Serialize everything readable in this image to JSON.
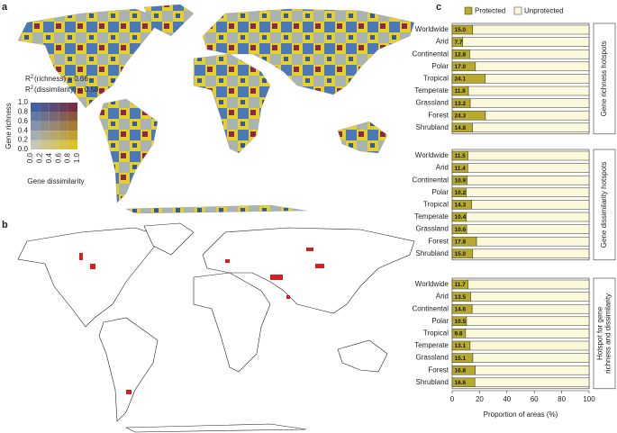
{
  "panel_labels": [
    "a",
    "b",
    "c"
  ],
  "map_a": {
    "stat_symbol": "R",
    "stat_sup": "2",
    "stats": [
      "(richness) = 0.66",
      "(dissimilarity) = 0.58"
    ],
    "colorbar": {
      "ylabel": "Gene richness",
      "xlabel": "Gene dissimilarity",
      "ticks": [
        {
          "value": 0,
          "label": "0.0"
        },
        {
          "value": 0.2,
          "label": "0.2"
        },
        {
          "value": 0.4,
          "label": "0.4"
        },
        {
          "value": 0.6,
          "label": "0.6"
        },
        {
          "value": 0.8,
          "label": "0.8"
        },
        {
          "value": 1,
          "label": "1.0"
        }
      ]
    }
  },
  "chart_data": {
    "type": "stacked-barh",
    "series": [
      {
        "name": "Protected",
        "color": "#b8aa2a"
      },
      {
        "name": "Unprotected",
        "color": "#fbf8dc"
      }
    ],
    "categories": [
      "Worldwide",
      "Arid",
      "Continental",
      "Polar",
      "Tropical",
      "Temperate",
      "Grassland",
      "Forest",
      "Shrubland"
    ],
    "xlabel": "Proportion of areas (%)",
    "xlim": [
      0,
      100
    ],
    "xticks": [
      0,
      20,
      40,
      60,
      80,
      100
    ],
    "groups": [
      {
        "title_lines": [
          "Gene richness hotspots"
        ],
        "values": [
          [
            15.0,
            7.7,
            12.8,
            17.0,
            24.1,
            11.9,
            13.2,
            24.3,
            14.8
          ],
          [
            85.0,
            92.3,
            87.2,
            83.0,
            75.9,
            88.1,
            86.8,
            75.7,
            85.2
          ]
        ],
        "value_labels": [
          "15.0",
          "7.7",
          "12.8",
          "17.0",
          "24.1",
          "11.9",
          "13.2",
          "24.3",
          "14.8"
        ]
      },
      {
        "title_lines": [
          "Gene dissimilarity hotspots"
        ],
        "values": [
          [
            11.5,
            11.4,
            10.9,
            10.2,
            14.3,
            10.4,
            10.6,
            17.8,
            15.0
          ],
          [
            88.5,
            88.6,
            89.1,
            89.8,
            85.7,
            89.6,
            89.4,
            82.2,
            85.0
          ]
        ],
        "value_labels": [
          "11.5",
          "11.4",
          "10.9",
          "10.2",
          "14.3",
          "10.4",
          "10.6",
          "17.8",
          "15.0"
        ]
      },
      {
        "title_lines": [
          "Hotspot for gene",
          "richness and dissimilarity"
        ],
        "values": [
          [
            11.7,
            13.5,
            14.6,
            10.5,
            9.8,
            13.1,
            15.1,
            16.8,
            16.6
          ],
          [
            88.3,
            86.5,
            85.4,
            89.5,
            90.2,
            86.9,
            84.9,
            83.2,
            83.4
          ]
        ],
        "value_labels": [
          "11.7",
          "13.5",
          "14.6",
          "10.5",
          "9.8",
          "13.1",
          "15.1",
          "16.8",
          "16.6"
        ]
      }
    ]
  }
}
